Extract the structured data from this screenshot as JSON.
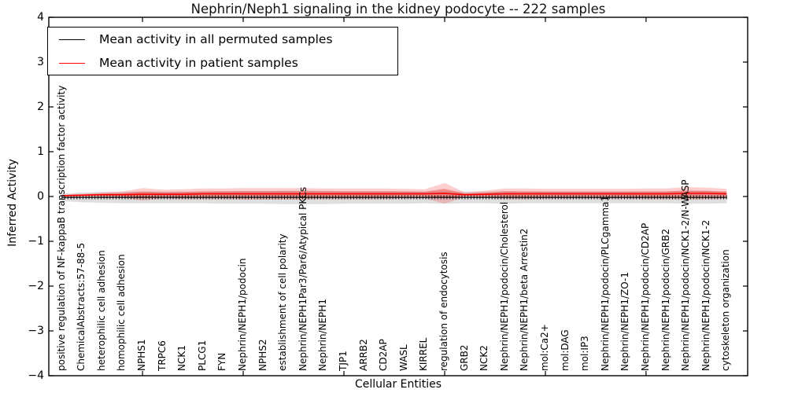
{
  "title": "Nephrin/Neph1 signaling in the kidney podocyte -- 222 samples",
  "axes": {
    "ylabel": "Inferred Activity",
    "xlabel": "Cellular Entities",
    "ylim": [
      -4,
      4
    ],
    "yticks": [
      {
        "v": 4,
        "label": "4"
      },
      {
        "v": 3,
        "label": "3"
      },
      {
        "v": 2,
        "label": "2"
      },
      {
        "v": 1,
        "label": "1"
      },
      {
        "v": 0,
        "label": "0"
      },
      {
        "v": -1,
        "label": "−1"
      },
      {
        "v": -2,
        "label": "−2"
      },
      {
        "v": -3,
        "label": "−3"
      },
      {
        "v": -4,
        "label": "−4"
      }
    ],
    "grid": false
  },
  "legend": {
    "position": "upper-left",
    "items": [
      {
        "label": "Mean activity in all permuted samples",
        "color": "#000000"
      },
      {
        "label": "Mean activity in patient samples",
        "color": "#ff0000"
      }
    ]
  },
  "colors": {
    "permuted_line": "#000000",
    "permuted_band": "rgba(110,110,110,0.22)",
    "patient_line": "#ff0000",
    "patient_band_outer": "rgba(255,50,50,0.24)",
    "patient_band_inner": "rgba(225,25,25,0.34)",
    "frame": "#000000"
  },
  "chart_data": {
    "type": "line",
    "title": "Nephrin/Neph1 signaling in the kidney podocyte -- 222 samples",
    "xlabel": "Cellular Entities",
    "ylabel": "Inferred Activity",
    "ylim": [
      -4,
      4
    ],
    "xticks_at": [
      5,
      10,
      15,
      20,
      25,
      30
    ],
    "sample_count": 222,
    "legend_position": "upper left",
    "categories": [
      "positive regulation of NF-kappaB transcription factor activity",
      "ChemicalAbstracts:57-88-5",
      "heterophilic cell adhesion",
      "homophilic cell adhesion",
      "NPHS1",
      "TRPC6",
      "NCK1",
      "PLCG1",
      "FYN",
      "Nephrin/NEPH1/podocin",
      "NPHS2",
      "establishment of cell polarity",
      "Nephrin/NEPH1Par3/Par6/Atypical PKCs",
      "Nephrin/NEPH1",
      "TJP1",
      "ARRB2",
      "CD2AP",
      "WASL",
      "KIRREL",
      "regulation of endocytosis",
      "GRB2",
      "NCK2",
      "Nephrin/NEPH1/podocin/Cholesterol",
      "Nephrin/NEPH1/beta Arrestin2",
      "mol:Ca2+",
      "mol:DAG",
      "mol:IP3",
      "Nephrin/NEPH1/podocin/PLCgamma1",
      "Nephrin/NEPH1/ZO-1",
      "Nephrin/NEPH1/podocin/CD2AP",
      "Nephrin/NEPH1/podocin/GRB2",
      "Nephrin/NEPH1/podocin/NCK1-2/N-WASP",
      "Nephrin/NEPH1/podocin/NCK1-2",
      "cytoskeleton organization"
    ],
    "series": [
      {
        "name": "Mean activity in all permuted samples",
        "color": "#000000",
        "values": [
          -0.02,
          -0.02,
          -0.02,
          -0.02,
          -0.02,
          -0.02,
          -0.02,
          -0.02,
          -0.02,
          -0.02,
          -0.02,
          -0.02,
          -0.02,
          -0.02,
          -0.02,
          -0.02,
          -0.02,
          -0.02,
          -0.02,
          -0.02,
          -0.02,
          -0.02,
          -0.02,
          -0.02,
          -0.02,
          -0.02,
          -0.02,
          -0.02,
          -0.02,
          -0.02,
          -0.02,
          -0.02,
          -0.02,
          -0.02
        ],
        "std": [
          0.08,
          0.11,
          0.12,
          0.13,
          0.13,
          0.13,
          0.13,
          0.13,
          0.14,
          0.14,
          0.14,
          0.15,
          0.15,
          0.15,
          0.14,
          0.14,
          0.14,
          0.14,
          0.13,
          0.14,
          0.13,
          0.13,
          0.14,
          0.13,
          0.13,
          0.13,
          0.13,
          0.13,
          0.13,
          0.13,
          0.13,
          0.14,
          0.14,
          0.13
        ]
      },
      {
        "name": "Mean activity in patient samples",
        "color": "#ff0000",
        "values": [
          0.02,
          0.03,
          0.04,
          0.04,
          0.05,
          0.05,
          0.05,
          0.06,
          0.06,
          0.06,
          0.06,
          0.06,
          0.06,
          0.06,
          0.06,
          0.06,
          0.06,
          0.06,
          0.06,
          0.07,
          0.04,
          0.05,
          0.06,
          0.06,
          0.06,
          0.06,
          0.06,
          0.06,
          0.06,
          0.06,
          0.06,
          0.07,
          0.07,
          0.06
        ],
        "std": [
          0.02,
          0.03,
          0.05,
          0.07,
          0.14,
          0.1,
          0.11,
          0.12,
          0.12,
          0.13,
          0.13,
          0.13,
          0.13,
          0.12,
          0.12,
          0.12,
          0.12,
          0.11,
          0.1,
          0.23,
          0.05,
          0.08,
          0.12,
          0.12,
          0.11,
          0.11,
          0.11,
          0.11,
          0.11,
          0.12,
          0.12,
          0.14,
          0.13,
          0.11
        ]
      }
    ]
  }
}
